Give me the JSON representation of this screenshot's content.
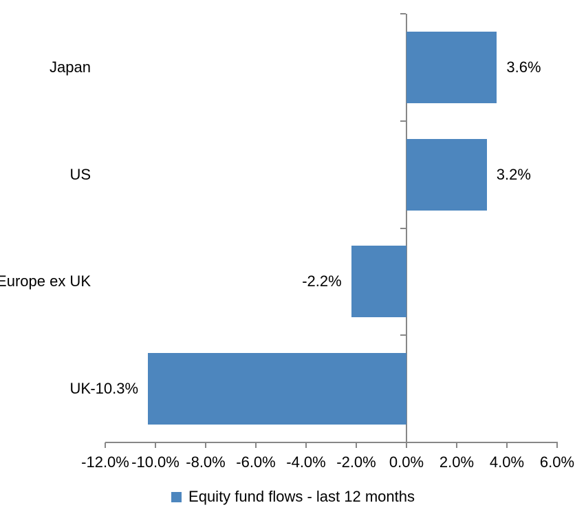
{
  "chart_data": {
    "type": "bar",
    "orientation": "horizontal",
    "title": "",
    "categories": [
      "Japan",
      "US",
      "Europe ex UK",
      "UK"
    ],
    "series": [
      {
        "name": "Equity fund flows - last 12 months",
        "values": [
          3.6,
          3.2,
          -2.2,
          -10.3
        ],
        "value_labels": [
          "3.6%",
          "3.2%",
          "-2.2%",
          "-10.3%"
        ],
        "color": "#4d86be"
      }
    ],
    "xlim": [
      -12,
      6
    ],
    "xticks": [
      {
        "value": -12,
        "label": "-12.0%"
      },
      {
        "value": -10,
        "label": "-10.0%"
      },
      {
        "value": -8,
        "label": "-8.0%"
      },
      {
        "value": -6,
        "label": "-6.0%"
      },
      {
        "value": -4,
        "label": "-4.0%"
      },
      {
        "value": -2,
        "label": "-2.0%"
      },
      {
        "value": 0,
        "label": "0.0%"
      },
      {
        "value": 2,
        "label": "2.0%"
      },
      {
        "value": 4,
        "label": "4.0%"
      },
      {
        "value": 6,
        "label": "6.0%"
      }
    ],
    "grid": false,
    "legend_position": "bottom",
    "axis_color": "#878787",
    "text_color": "#000000",
    "background_color": "#ffffff"
  }
}
